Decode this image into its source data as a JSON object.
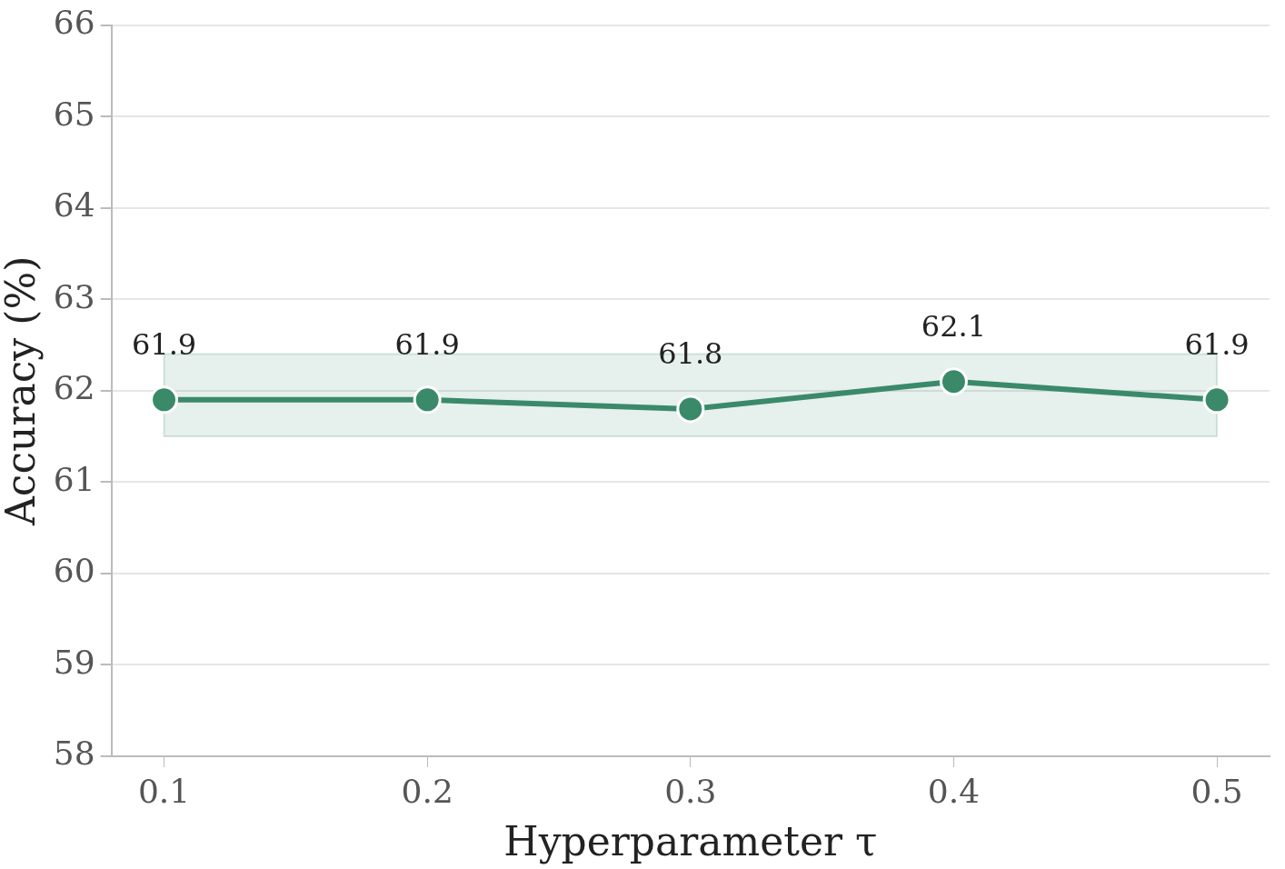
{
  "chart_data": {
    "type": "line",
    "xlabel": "Hyperparameter τ",
    "ylabel": "Accuracy (%)",
    "x": [
      0.1,
      0.2,
      0.3,
      0.4,
      0.5
    ],
    "series": [
      {
        "color": "#3a8a6a",
        "values": [
          61.9,
          61.9,
          61.8,
          62.1,
          61.9
        ]
      }
    ],
    "xlim": [
      0.08,
      0.52
    ],
    "xticks": [
      0.1,
      0.2,
      0.3,
      0.4,
      0.5
    ],
    "ylim": [
      58,
      66
    ],
    "yticks": [
      58,
      59,
      60,
      61,
      62,
      63,
      64,
      65,
      66
    ],
    "bands": [
      {
        "axis": "y",
        "from": 61.5,
        "to": 62.4,
        "color": "#3a8a6a"
      }
    ],
    "grid": "y",
    "legend": false,
    "marker": "circle",
    "line_style": "solid",
    "data_labels": true
  }
}
